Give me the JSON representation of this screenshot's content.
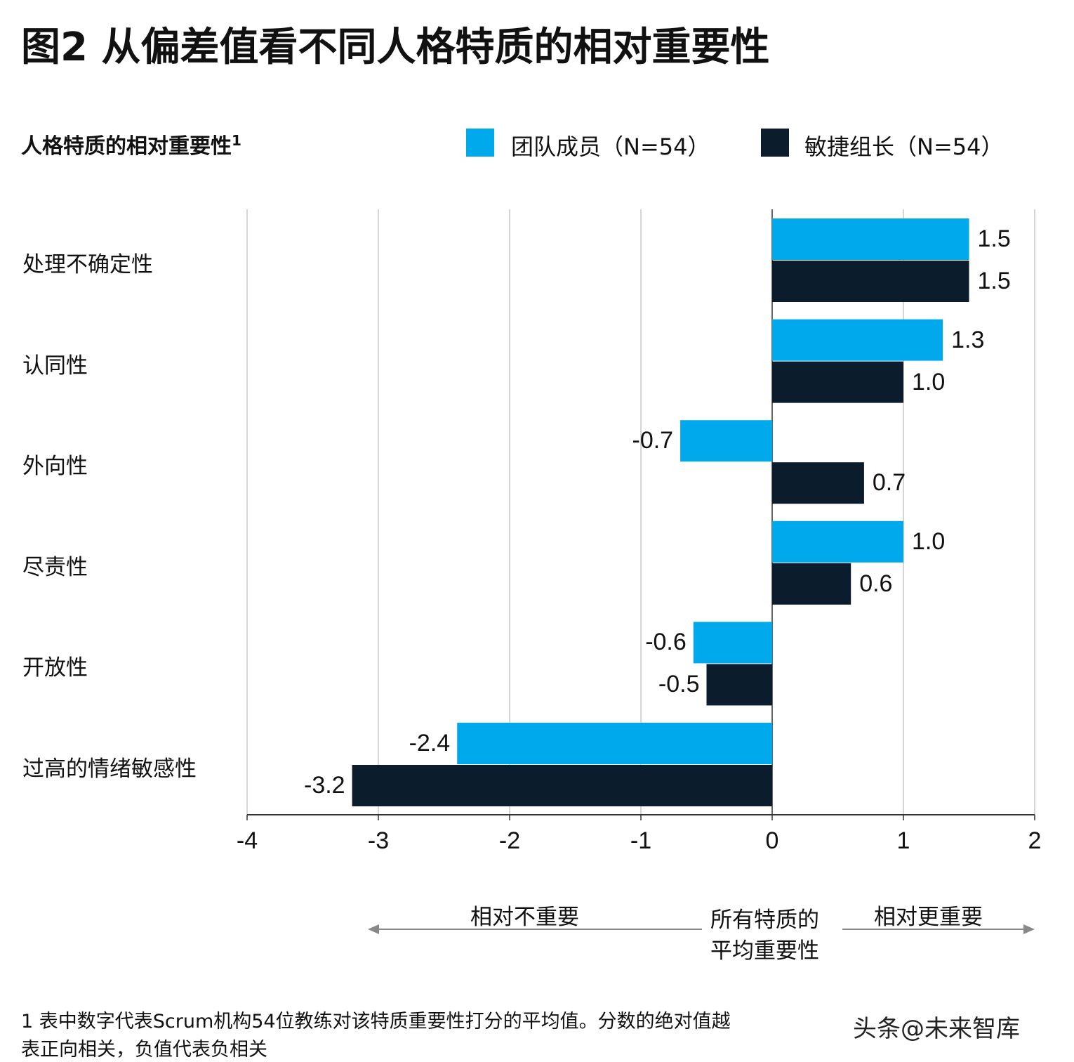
{
  "title": "图2 从偏差值看不同人格特质的相对重要性",
  "chart_data": {
    "type": "bar",
    "orientation": "horizontal",
    "title": "人格特质的相对重要性",
    "title_superscript": "1",
    "categories": [
      "处理不确定性",
      "认同性",
      "外向性",
      "尽责性",
      "开放性",
      "过高的情绪敏感性"
    ],
    "series": [
      {
        "name": "团队成员（N=54）",
        "color": "#00a8ec",
        "values": [
          1.5,
          1.3,
          -0.7,
          1.0,
          -0.6,
          -2.4
        ],
        "labels": [
          "1.5",
          "1.3",
          "-0.7",
          "1.0",
          "-0.6",
          "-2.4"
        ]
      },
      {
        "name": "敏捷组长（N=54）",
        "color": "#0b1c2c",
        "values": [
          1.5,
          1.0,
          0.7,
          0.6,
          -0.5,
          -3.2
        ],
        "labels": [
          "1.5",
          "1.0",
          "0.7",
          "0.6",
          "-0.5",
          "-3.2"
        ]
      }
    ],
    "xlim": [
      -4,
      2
    ],
    "xticks": [
      "-4",
      "-3",
      "-2",
      "-1",
      "0",
      "1",
      "2"
    ],
    "grid": "vertical",
    "legend": "top-right",
    "annotations": {
      "left_arrow": "相对不重要",
      "center_line1": "所有特质的",
      "center_line2": "平均重要性",
      "right_arrow": "相对更重要"
    }
  },
  "footnote": {
    "line1": "1 表中数字代表Scrum机构54位教练对该特质重要性打分的平均值。分数的绝对值越",
    "line2": "表正向相关，负值代表负相关"
  },
  "watermark": "头条@未来智库"
}
